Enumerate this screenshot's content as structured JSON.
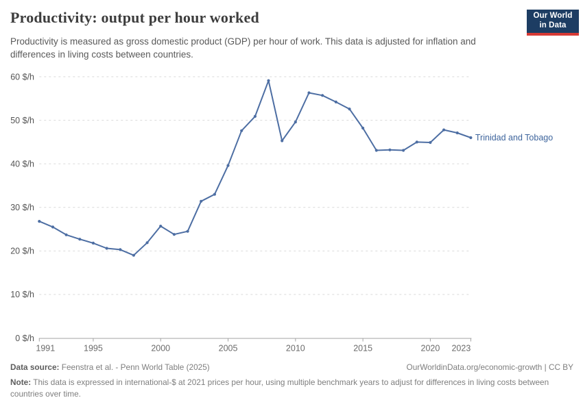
{
  "header": {
    "title": "Productivity: output per hour worked",
    "subtitle": "Productivity is measured as gross domestic product (GDP) per hour of work. This data is adjusted for inflation and differences in living costs between countries.",
    "logo": {
      "line1": "Our World",
      "line2": "in Data",
      "bg_color": "#1d3d63",
      "stripe_color": "#d73a35"
    }
  },
  "chart_data": {
    "type": "line",
    "title": "Productivity: output per hour worked",
    "xlabel": "",
    "ylabel": "",
    "xlim": [
      1991,
      2023
    ],
    "ylim": [
      0,
      60
    ],
    "grid": true,
    "x_ticks": [
      1991,
      1995,
      2000,
      2005,
      2010,
      2015,
      2020,
      2023
    ],
    "y_ticks": [
      0,
      10,
      20,
      30,
      40,
      50,
      60
    ],
    "y_tick_suffix": " $/h",
    "series": [
      {
        "name": "Trinidad and Tobago",
        "color": "#4d6ea3",
        "label_color": "#3d649c",
        "x": [
          1991,
          1992,
          1993,
          1994,
          1995,
          1996,
          1997,
          1998,
          1999,
          2000,
          2001,
          2002,
          2003,
          2004,
          2005,
          2006,
          2007,
          2008,
          2009,
          2010,
          2011,
          2012,
          2013,
          2014,
          2015,
          2016,
          2017,
          2018,
          2019,
          2020,
          2021,
          2022,
          2023
        ],
        "values": [
          26.8,
          25.5,
          23.7,
          22.7,
          21.8,
          20.6,
          20.3,
          19.0,
          21.9,
          25.7,
          23.8,
          24.5,
          31.4,
          33.0,
          39.6,
          47.6,
          50.9,
          59.1,
          45.3,
          49.6,
          56.3,
          55.7,
          54.2,
          52.6,
          48.2,
          43.1,
          43.2,
          43.1,
          45.0,
          44.9,
          47.8,
          47.1,
          46.0
        ]
      }
    ],
    "entity_label": "Trinidad and Tobago",
    "legend_position": "end-of-line"
  },
  "footer": {
    "source_label": "Data source:",
    "source_text": "Feenstra et al. - Penn World Table (2025)",
    "rights": "OurWorldinData.org/economic-growth | CC BY",
    "note_label": "Note:",
    "note_text": "This data is expressed in international-$ at 2021 prices per hour, using multiple benchmark years to adjust for differences in living costs between countries over time."
  }
}
